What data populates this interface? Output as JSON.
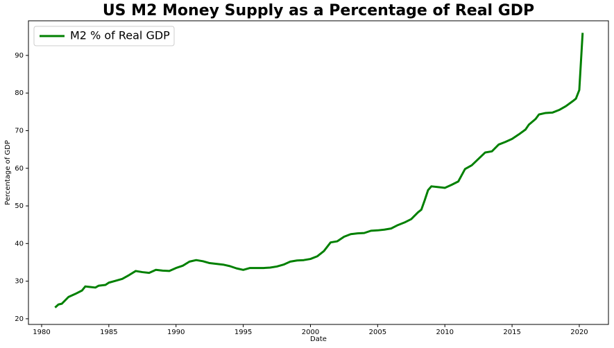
{
  "chart_data": {
    "type": "line",
    "title": "US M2 Money Supply as a Percentage of Real GDP",
    "x_label": "Date",
    "y_label": "Percentage of GDP",
    "x": [
      1981.0,
      1981.25,
      1981.5,
      1982,
      1982.5,
      1983,
      1983.25,
      1983.5,
      1984,
      1984.25,
      1984.75,
      1985,
      1985.5,
      1986,
      1986.5,
      1987,
      1987.5,
      1988,
      1988.5,
      1989,
      1989.5,
      1990,
      1990.5,
      1991,
      1991.5,
      1992,
      1992.5,
      1993,
      1993.5,
      1994,
      1994.5,
      1995,
      1995.5,
      1996,
      1996.5,
      1997,
      1997.5,
      1998,
      1998.5,
      1999,
      1999.5,
      2000,
      2000.5,
      2001,
      2001.5,
      2002,
      2002.5,
      2003,
      2003.5,
      2004,
      2004.5,
      2005,
      2005.5,
      2006,
      2006.5,
      2007,
      2007.5,
      2008,
      2008.25,
      2008.5,
      2008.75,
      2009,
      2009.5,
      2010,
      2010.5,
      2011,
      2011.5,
      2012,
      2012.5,
      2013,
      2013.5,
      2014,
      2014.5,
      2015,
      2015.5,
      2016,
      2016.25,
      2016.75,
      2017,
      2017.5,
      2018,
      2018.5,
      2019,
      2019.5,
      2019.75,
      2020,
      2020.25
    ],
    "series": [
      {
        "name": "M2 % of Real GDP",
        "color": "#008000",
        "values": [
          23.0,
          23.8,
          24.0,
          25.8,
          26.6,
          27.5,
          28.6,
          28.5,
          28.3,
          28.8,
          29.0,
          29.6,
          30.1,
          30.6,
          31.6,
          32.7,
          32.4,
          32.2,
          33.0,
          32.8,
          32.7,
          33.5,
          34.1,
          35.2,
          35.6,
          35.3,
          34.8,
          34.6,
          34.4,
          34.0,
          33.4,
          33.0,
          33.5,
          33.5,
          33.5,
          33.6,
          33.9,
          34.4,
          35.2,
          35.5,
          35.6,
          35.9,
          36.6,
          38.0,
          40.3,
          40.6,
          41.8,
          42.5,
          42.7,
          42.8,
          43.4,
          43.5,
          43.7,
          44.0,
          44.9,
          45.6,
          46.5,
          48.3,
          49.0,
          51.5,
          54.2,
          55.2,
          55.0,
          54.8,
          55.6,
          56.5,
          59.8,
          60.8,
          62.5,
          64.2,
          64.5,
          66.3,
          67.0,
          67.8,
          69.0,
          70.3,
          71.6,
          73.1,
          74.3,
          74.7,
          74.8,
          75.5,
          76.5,
          77.8,
          78.5,
          80.8,
          96.0
        ]
      }
    ],
    "xlim": [
      1979.02,
      2022.17
    ],
    "xticks": [
      1980,
      1985,
      1990,
      1995,
      2000,
      2005,
      2010,
      2015,
      2020
    ],
    "ylim": [
      18.5,
      99.2
    ],
    "yticks": [
      20,
      30,
      40,
      50,
      60,
      70,
      80,
      90
    ],
    "legend": "upper left",
    "grid": false
  }
}
